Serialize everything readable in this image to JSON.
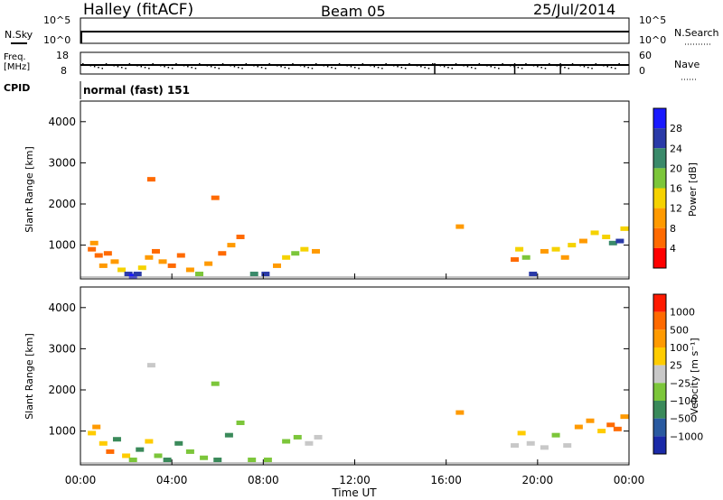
{
  "header": {
    "station": "Halley (fitACF)",
    "beam": "Beam 05",
    "date": "25/Jul/2014"
  },
  "strips": {
    "nsky": {
      "label": "N.Sky",
      "ticks": [
        "10^5",
        "10^0"
      ]
    },
    "nsearch": {
      "label": "N.Search",
      "ticks": [
        "10^5",
        "10^0"
      ]
    },
    "freq": {
      "label_line1": "Freq.",
      "label_line2": "[MHz]",
      "ticks": [
        "18",
        "8"
      ]
    },
    "nave": {
      "label": "Nave",
      "ticks": [
        "60",
        "0"
      ]
    },
    "cpid": {
      "label": "CPID",
      "value": "normal (fast) 151"
    }
  },
  "colors": {
    "power": [
      "#1a1aff",
      "#2a3aa8",
      "#3a8a6a",
      "#7cc63a",
      "#f5d200",
      "#ff9a00",
      "#ff6a00",
      "#ff0000"
    ],
    "velocity": [
      "#1a2aa8",
      "#2a5aa0",
      "#3a8a5a",
      "#7cc63a",
      "#c8c8c8",
      "#ffcc00",
      "#ff9a00",
      "#ff6a00",
      "#ff1a00"
    ]
  },
  "chart_data": [
    {
      "type": "heatmap",
      "name": "power",
      "ylabel": "Slant Range [km]",
      "ylim": [
        180,
        4500
      ],
      "xlim": [
        0,
        24
      ],
      "yticks": [
        "4000",
        "3000",
        "2000",
        "1000"
      ],
      "colorbar": {
        "label": "Power [dB]",
        "ticks": [
          "28",
          "24",
          "20",
          "16",
          "12",
          "8",
          "4"
        ]
      },
      "cells": [
        [
          0.5,
          900,
          1
        ],
        [
          0.6,
          1050,
          2
        ],
        [
          0.8,
          750,
          1
        ],
        [
          1.0,
          500,
          2
        ],
        [
          1.2,
          800,
          1
        ],
        [
          1.5,
          600,
          2
        ],
        [
          1.8,
          400,
          3
        ],
        [
          2.1,
          300,
          6
        ],
        [
          2.3,
          250,
          7
        ],
        [
          2.5,
          300,
          6
        ],
        [
          2.7,
          450,
          3
        ],
        [
          3.0,
          700,
          2
        ],
        [
          3.3,
          850,
          1
        ],
        [
          3.6,
          600,
          2
        ],
        [
          4.0,
          500,
          1
        ],
        [
          4.4,
          750,
          1
        ],
        [
          4.8,
          400,
          2
        ],
        [
          5.2,
          300,
          4
        ],
        [
          5.6,
          550,
          2
        ],
        [
          6.2,
          800,
          1
        ],
        [
          6.6,
          1000,
          2
        ],
        [
          7.0,
          1200,
          1
        ],
        [
          7.6,
          300,
          5
        ],
        [
          8.1,
          300,
          6
        ],
        [
          8.6,
          500,
          2
        ],
        [
          9.0,
          700,
          3
        ],
        [
          9.4,
          800,
          4
        ],
        [
          9.8,
          900,
          3
        ],
        [
          10.3,
          850,
          2
        ],
        [
          19.0,
          650,
          1
        ],
        [
          19.2,
          900,
          3
        ],
        [
          19.5,
          700,
          4
        ],
        [
          19.8,
          300,
          6
        ],
        [
          20.3,
          850,
          2
        ],
        [
          20.8,
          900,
          3
        ],
        [
          21.2,
          700,
          2
        ],
        [
          21.5,
          1000,
          3
        ],
        [
          22.0,
          1100,
          2
        ],
        [
          22.5,
          1300,
          3
        ],
        [
          23.0,
          1200,
          3
        ],
        [
          23.3,
          1050,
          5
        ],
        [
          23.6,
          1100,
          6
        ],
        [
          23.8,
          1400,
          3
        ],
        [
          16.6,
          1450,
          2
        ],
        [
          3.1,
          2600,
          1
        ],
        [
          5.9,
          2150,
          1
        ]
      ]
    },
    {
      "type": "heatmap",
      "name": "velocity",
      "ylabel": "Slant Range [km]",
      "ylim": [
        180,
        4500
      ],
      "xlim": [
        0,
        24
      ],
      "yticks": [
        "4000",
        "3000",
        "2000",
        "1000"
      ],
      "colorbar": {
        "label": "Velocity [m s⁻¹]",
        "ticks": [
          "1000",
          "500",
          "100",
          "25",
          "−25",
          "−100",
          "−500",
          "−1000"
        ]
      },
      "cells": [
        [
          0.5,
          950,
          5
        ],
        [
          0.7,
          1100,
          6
        ],
        [
          1.0,
          700,
          5
        ],
        [
          1.3,
          500,
          7
        ],
        [
          1.6,
          800,
          2
        ],
        [
          2.0,
          400,
          5
        ],
        [
          2.3,
          300,
          3
        ],
        [
          2.6,
          550,
          2
        ],
        [
          3.0,
          750,
          5
        ],
        [
          3.4,
          400,
          3
        ],
        [
          3.8,
          300,
          2
        ],
        [
          4.3,
          700,
          2
        ],
        [
          4.8,
          500,
          3
        ],
        [
          5.4,
          350,
          3
        ],
        [
          6.0,
          300,
          2
        ],
        [
          6.5,
          900,
          2
        ],
        [
          7.0,
          1200,
          3
        ],
        [
          7.5,
          300,
          3
        ],
        [
          8.2,
          300,
          3
        ],
        [
          9.0,
          750,
          3
        ],
        [
          9.5,
          850,
          3
        ],
        [
          10.0,
          700,
          4
        ],
        [
          10.4,
          850,
          4
        ],
        [
          19.0,
          650,
          4
        ],
        [
          19.3,
          950,
          5
        ],
        [
          19.7,
          700,
          4
        ],
        [
          20.3,
          600,
          4
        ],
        [
          20.8,
          900,
          3
        ],
        [
          21.3,
          650,
          4
        ],
        [
          21.8,
          1100,
          6
        ],
        [
          22.3,
          1250,
          6
        ],
        [
          22.8,
          1000,
          5
        ],
        [
          23.2,
          1150,
          7
        ],
        [
          23.5,
          1050,
          7
        ],
        [
          23.8,
          1350,
          6
        ],
        [
          16.6,
          1450,
          6
        ],
        [
          3.1,
          2600,
          4
        ],
        [
          5.9,
          2150,
          3
        ]
      ]
    }
  ],
  "xaxis": {
    "ticks": [
      "00:00",
      "04:00",
      "08:00",
      "12:00",
      "16:00",
      "20:00",
      "00:00"
    ],
    "label": "Time UT"
  }
}
